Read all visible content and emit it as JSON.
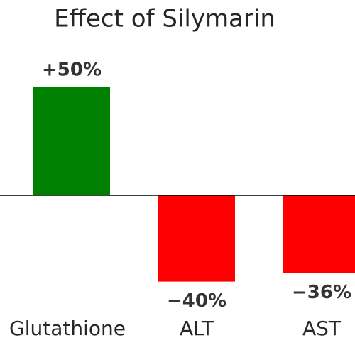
{
  "chart_data": {
    "type": "bar",
    "title": "Effect of Silymarin",
    "categories": [
      "Glutathione",
      "ALT",
      "AST"
    ],
    "values": [
      50,
      -40,
      -36
    ],
    "value_labels": [
      "+50%",
      "−40%",
      "−36%"
    ],
    "colors": [
      "#008000",
      "#ff0000",
      "#ff0000"
    ]
  }
}
